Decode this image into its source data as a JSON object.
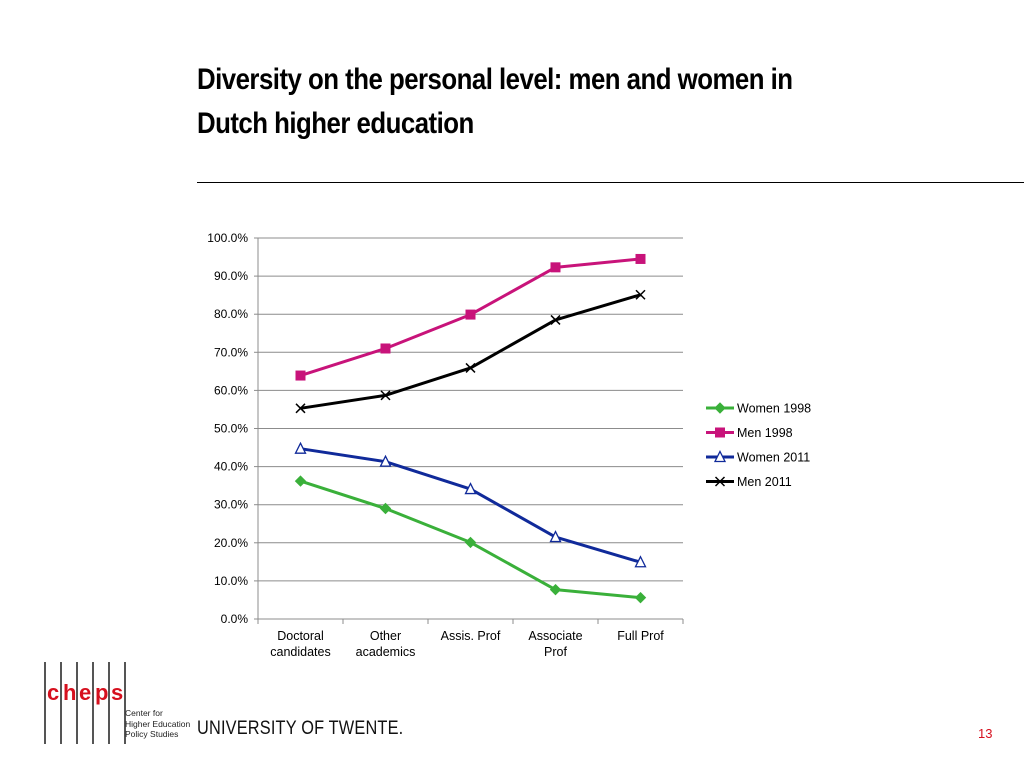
{
  "slide": {
    "title": "Diversity on the personal level: men and women in Dutch higher education",
    "university": "UNIVERSITY OF TWENTE.",
    "page_number": "13",
    "logo": {
      "letters": [
        "c",
        "h",
        "e",
        "p",
        "s"
      ],
      "subtitle": "Center for\nHigher Education\nPolicy Studies"
    }
  },
  "colors": {
    "women_1998": "#3ab03a",
    "men_1998": "#c8137a",
    "women_2011": "#102a9a",
    "men_2011": "#000000",
    "accent": "#d6101e"
  },
  "chart_data": {
    "type": "line",
    "categories": [
      "Doctoral\ncandidates",
      "Other\nacademics",
      "Assis. Prof",
      "Associate\nProf",
      "Full Prof"
    ],
    "series": [
      {
        "name": "Women 1998",
        "marker": "diamond",
        "values": [
          36.2,
          29.0,
          20.1,
          7.7,
          5.6
        ]
      },
      {
        "name": "Men 1998",
        "marker": "square",
        "values": [
          63.9,
          71.0,
          79.9,
          92.3,
          94.5
        ]
      },
      {
        "name": "Women 2011",
        "marker": "triangle",
        "values": [
          44.7,
          41.3,
          34.1,
          21.5,
          14.9
        ]
      },
      {
        "name": "Men 2011",
        "marker": "x",
        "values": [
          55.3,
          58.7,
          65.9,
          78.5,
          85.1
        ]
      }
    ],
    "ylim": [
      0,
      100
    ],
    "yticks": [
      "0.0%",
      "10.0%",
      "20.0%",
      "30.0%",
      "40.0%",
      "50.0%",
      "60.0%",
      "70.0%",
      "80.0%",
      "90.0%",
      "100.0%"
    ],
    "grid": true,
    "legend": "right"
  }
}
